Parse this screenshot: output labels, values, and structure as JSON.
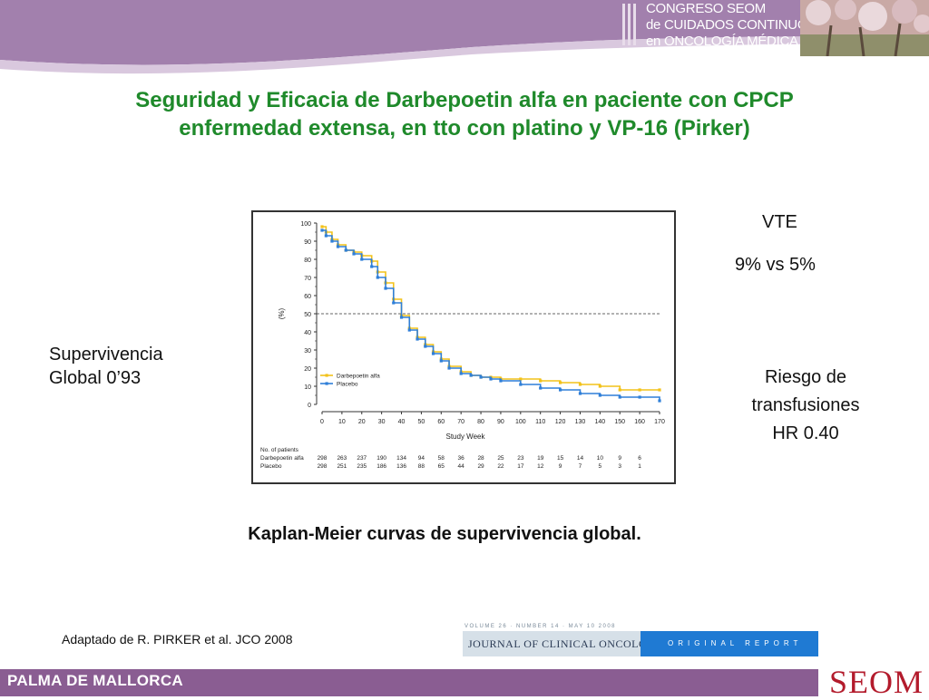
{
  "header": {
    "congress_line1": "CONGRESO SEOM",
    "congress_line2": "de CUIDADOS CONTINUOS",
    "congress_line3": "en ONCOLOGÍA MÉDICA",
    "banner_color": "#a280ad"
  },
  "title": {
    "line1": "Seguridad y Eficacia de Darbepoetin alfa en paciente con CPCP",
    "line2": "enfermedad extensa, en tto con platino y VP-16 (Pirker)",
    "color": "#1f8a2b"
  },
  "side_left": {
    "line1": "Supervivencia",
    "line2": "Global 0’93"
  },
  "side_right": {
    "vte_label": "VTE",
    "vte_value": "9% vs 5%",
    "risk_line1": "Riesgo de",
    "risk_line2": "transfusiones",
    "risk_line3": "HR 0.40"
  },
  "caption": "Kaplan-Meier curvas de supervivencia global.",
  "source": "Adaptado de R.  PIRKER et al. JCO 2008",
  "journal": {
    "top_line": "VOLUME 26 · NUMBER 14 · MAY 10 2008",
    "name": "JOURNAL OF CLINICAL ONCOLOGY",
    "section": "ORIGINAL REPORT"
  },
  "footer": {
    "location": "PALMA DE MALLORCA",
    "logo": "SEOM",
    "color": "#8a5d92"
  },
  "chart_data": {
    "type": "line",
    "ylabel": "(%)",
    "xlabel": "Study Week",
    "xlim": [
      0,
      170
    ],
    "ylim": [
      0,
      100
    ],
    "yticks": [
      0,
      10,
      20,
      30,
      40,
      50,
      60,
      70,
      80,
      90,
      100
    ],
    "xticks": [
      0,
      10,
      20,
      30,
      40,
      50,
      60,
      70,
      80,
      90,
      100,
      110,
      120,
      130,
      140,
      150,
      160,
      170
    ],
    "reference_line_y": 50,
    "legend_position": "bottom-left",
    "series": [
      {
        "name": "Darbepoetin alfa",
        "color": "#f2c21a",
        "x": [
          0,
          2,
          5,
          8,
          12,
          16,
          20,
          25,
          28,
          32,
          36,
          40,
          44,
          48,
          52,
          56,
          60,
          64,
          70,
          75,
          80,
          85,
          90,
          100,
          110,
          120,
          130,
          140,
          150,
          160,
          170
        ],
        "y": [
          98,
          95,
          91,
          88,
          85,
          84,
          82,
          79,
          73,
          67,
          58,
          49,
          42,
          37,
          33,
          29,
          25,
          21,
          18,
          16,
          15,
          15,
          14,
          14,
          13,
          12,
          11,
          10,
          8,
          8,
          8
        ]
      },
      {
        "name": "Placebo",
        "color": "#2f7fd8",
        "x": [
          0,
          2,
          5,
          8,
          12,
          16,
          20,
          25,
          28,
          32,
          36,
          40,
          44,
          48,
          52,
          56,
          60,
          64,
          70,
          75,
          80,
          85,
          90,
          100,
          110,
          120,
          130,
          140,
          150,
          160,
          170
        ],
        "y": [
          96,
          93,
          90,
          87,
          85,
          83,
          80,
          76,
          70,
          64,
          56,
          48,
          41,
          36,
          32,
          28,
          24,
          20,
          17,
          16,
          15,
          14,
          13,
          11,
          9,
          8,
          6,
          5,
          4,
          4,
          2
        ]
      }
    ],
    "patients_table": {
      "header": "No. of patients",
      "rows": [
        {
          "label": "Darbepoetin alfa",
          "values": [
            "298",
            "263",
            "237",
            "190",
            "134",
            "94",
            "58",
            "36",
            "28",
            "25",
            "23",
            "19",
            "15",
            "14",
            "10",
            "9",
            "6"
          ]
        },
        {
          "label": "Placebo",
          "values": [
            "298",
            "251",
            "235",
            "186",
            "136",
            "88",
            "65",
            "44",
            "29",
            "22",
            "17",
            "12",
            "9",
            "7",
            "5",
            "3",
            "1"
          ]
        }
      ]
    }
  }
}
